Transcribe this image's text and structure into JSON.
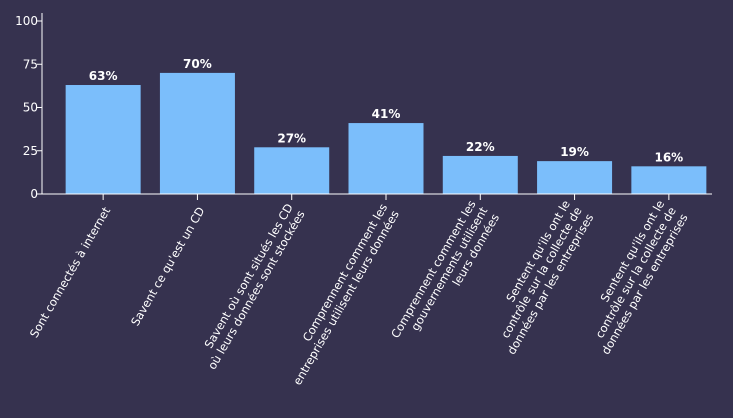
{
  "chart_data": {
    "type": "bar",
    "categories": [
      [
        "Sont connectés à internet"
      ],
      [
        "Savent ce qu'est un CD"
      ],
      [
        "Savent où sont situés les CD",
        "où leurs données sont stockées"
      ],
      [
        "Comprennent comment les",
        "entreprises utilisent leurs données"
      ],
      [
        "Comprennent comment les",
        "gouvernements  utilisent",
        "leurs données"
      ],
      [
        "Sentent qu'ils ont le",
        "contrôle sur la collecte de",
        "données par les entreprises"
      ],
      [
        "Sentent qu'ils ont le",
        "contrôle sur la collecte de",
        "données par les entreprises"
      ]
    ],
    "values": [
      63,
      70,
      27,
      41,
      22,
      19,
      16
    ],
    "data_labels": [
      "63%",
      "70%",
      "27%",
      "41%",
      "22%",
      "19%",
      "16%"
    ],
    "ylim": [
      0,
      100
    ],
    "yticks": [
      0,
      25,
      50,
      75,
      100
    ],
    "title": "",
    "xlabel": "",
    "ylabel": "",
    "grid": false,
    "colors": {
      "bar": "#7bbefb",
      "background": "#36324f",
      "axis": "#ffffff"
    }
  }
}
